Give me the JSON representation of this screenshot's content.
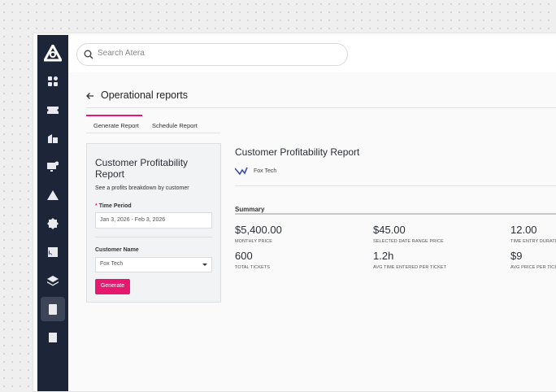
{
  "search": {
    "placeholder": "Search Atera"
  },
  "page": {
    "title": "Operational reports",
    "tabs": [
      "Generate Report",
      "Schedule Report"
    ]
  },
  "form": {
    "title": "Customer Profitability Report",
    "description": "See a profits breakdown by customer",
    "time_period": {
      "required_mark": "*",
      "label": "Time Period",
      "value": "Jan 3, 2026 - Feb 3, 2026"
    },
    "customer": {
      "label": "Customer Name",
      "value": "Fox Tech"
    },
    "button": "Generate"
  },
  "report": {
    "title": "Customer Profitability Report",
    "customer": "Fox Tech",
    "section": "Summary",
    "metrics": [
      {
        "value": "$5,400.00",
        "label": "MONTHLY PRICE"
      },
      {
        "value": "$45.00",
        "label": "SELECTED DATE RANGE PRICE"
      },
      {
        "value": "12.00",
        "label": "TIME ENTRY DURATION I"
      },
      {
        "value": "600",
        "label": "TOTAL TICKETS"
      },
      {
        "value": "1.2h",
        "label": "AVG TIME ENTERED PER TICKET"
      },
      {
        "value": "$9",
        "label": "AVG PRICE PER TICKET"
      }
    ]
  }
}
